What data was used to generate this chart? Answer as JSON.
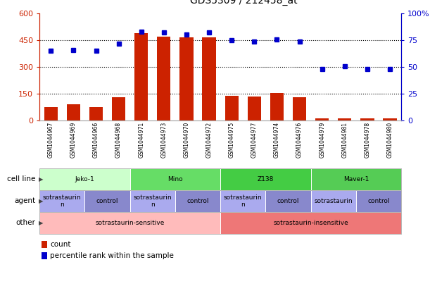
{
  "title": "GDS5309 / 212458_at",
  "samples": [
    "GSM1044967",
    "GSM1044969",
    "GSM1044966",
    "GSM1044968",
    "GSM1044971",
    "GSM1044973",
    "GSM1044970",
    "GSM1044972",
    "GSM1044975",
    "GSM1044977",
    "GSM1044974",
    "GSM1044976",
    "GSM1044979",
    "GSM1044981",
    "GSM1044978",
    "GSM1044980"
  ],
  "counts": [
    75,
    90,
    75,
    130,
    490,
    470,
    465,
    465,
    140,
    135,
    155,
    132,
    12,
    12,
    12,
    12
  ],
  "percentiles": [
    65,
    66,
    65,
    72,
    83,
    82,
    80,
    82,
    75,
    74,
    76,
    74,
    48,
    51,
    48,
    48
  ],
  "bar_color": "#cc2200",
  "dot_color": "#0000cc",
  "ylim_left": [
    0,
    600
  ],
  "ylim_right": [
    0,
    100
  ],
  "yticks_left": [
    0,
    150,
    300,
    450,
    600
  ],
  "yticks_right": [
    0,
    25,
    50,
    75,
    100
  ],
  "yticklabels_left": [
    "0",
    "150",
    "300",
    "450",
    "600"
  ],
  "yticklabels_right": [
    "0",
    "25",
    "50",
    "75",
    "100%"
  ],
  "cell_lines": [
    {
      "label": "Jeko-1",
      "start": 0,
      "end": 4,
      "color": "#ccffcc"
    },
    {
      "label": "Mino",
      "start": 4,
      "end": 8,
      "color": "#66dd66"
    },
    {
      "label": "Z138",
      "start": 8,
      "end": 12,
      "color": "#44cc44"
    },
    {
      "label": "Maver-1",
      "start": 12,
      "end": 16,
      "color": "#55cc55"
    }
  ],
  "agents": [
    {
      "label": "sotrastaurin\nn",
      "start": 0,
      "end": 2,
      "color": "#aaaaee"
    },
    {
      "label": "control",
      "start": 2,
      "end": 4,
      "color": "#8888cc"
    },
    {
      "label": "sotrastaurin\nn",
      "start": 4,
      "end": 6,
      "color": "#aaaaee"
    },
    {
      "label": "control",
      "start": 6,
      "end": 8,
      "color": "#8888cc"
    },
    {
      "label": "sotrastaurin\nn",
      "start": 8,
      "end": 10,
      "color": "#aaaaee"
    },
    {
      "label": "control",
      "start": 10,
      "end": 12,
      "color": "#8888cc"
    },
    {
      "label": "sotrastaurin",
      "start": 12,
      "end": 14,
      "color": "#aaaaee"
    },
    {
      "label": "control",
      "start": 14,
      "end": 16,
      "color": "#8888cc"
    }
  ],
  "others": [
    {
      "label": "sotrastaurin-sensitive",
      "start": 0,
      "end": 8,
      "color": "#ffbbbb"
    },
    {
      "label": "sotrastaurin-insensitive",
      "start": 8,
      "end": 16,
      "color": "#ee7777"
    }
  ],
  "legend_items": [
    {
      "label": "count",
      "color": "#cc2200"
    },
    {
      "label": "percentile rank within the sample",
      "color": "#0000cc"
    }
  ],
  "row_labels": [
    "cell line",
    "agent",
    "other"
  ],
  "bgcolor": "#ffffff",
  "plot_bgcolor": "#ffffff",
  "tick_color_left": "#cc2200",
  "tick_color_right": "#0000cc"
}
